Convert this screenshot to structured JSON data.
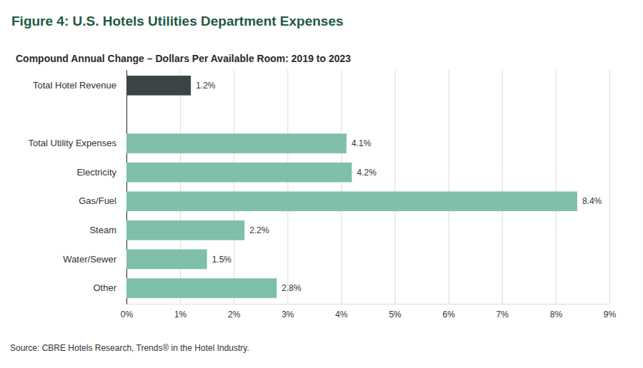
{
  "chart_data": {
    "type": "bar",
    "orientation": "horizontal",
    "title": "Figure 4: U.S. Hotels Utilities Department Expenses",
    "subtitle": "Compound Annual Change – Dollars Per Available Room: 2019 to 2023",
    "source": "Source: CBRE Hotels Research, Trends® in the Hotel Industry.",
    "categories": [
      "Total Hotel Revenue",
      null,
      "Total Utility Expenses",
      "Electricity",
      "Gas/Fuel",
      "Steam",
      "Water/Sewer",
      "Other"
    ],
    "values": [
      1.2,
      null,
      4.1,
      4.2,
      8.4,
      2.2,
      1.5,
      2.8
    ],
    "value_labels": [
      "1.2%",
      null,
      "4.1%",
      "4.2%",
      "8.4%",
      "2.2%",
      "1.5%",
      "2.8%"
    ],
    "colors": [
      "#3b4446",
      null,
      "#80bfa9",
      "#80bfa9",
      "#80bfa9",
      "#80bfa9",
      "#80bfa9",
      "#80bfa9"
    ],
    "xlim": [
      0,
      9
    ],
    "xticks": [
      {
        "value": 0,
        "label": "0%"
      },
      {
        "value": 1,
        "label": "1%"
      },
      {
        "value": 2,
        "label": "2%"
      },
      {
        "value": 3,
        "label": "3%"
      },
      {
        "value": 4,
        "label": "4%"
      },
      {
        "value": 5,
        "label": "5%"
      },
      {
        "value": 6,
        "label": "6%"
      },
      {
        "value": 7,
        "label": "7%"
      },
      {
        "value": 8,
        "label": "8%"
      },
      {
        "value": 9,
        "label": "9%"
      }
    ],
    "grid": true,
    "data_labels": true
  }
}
